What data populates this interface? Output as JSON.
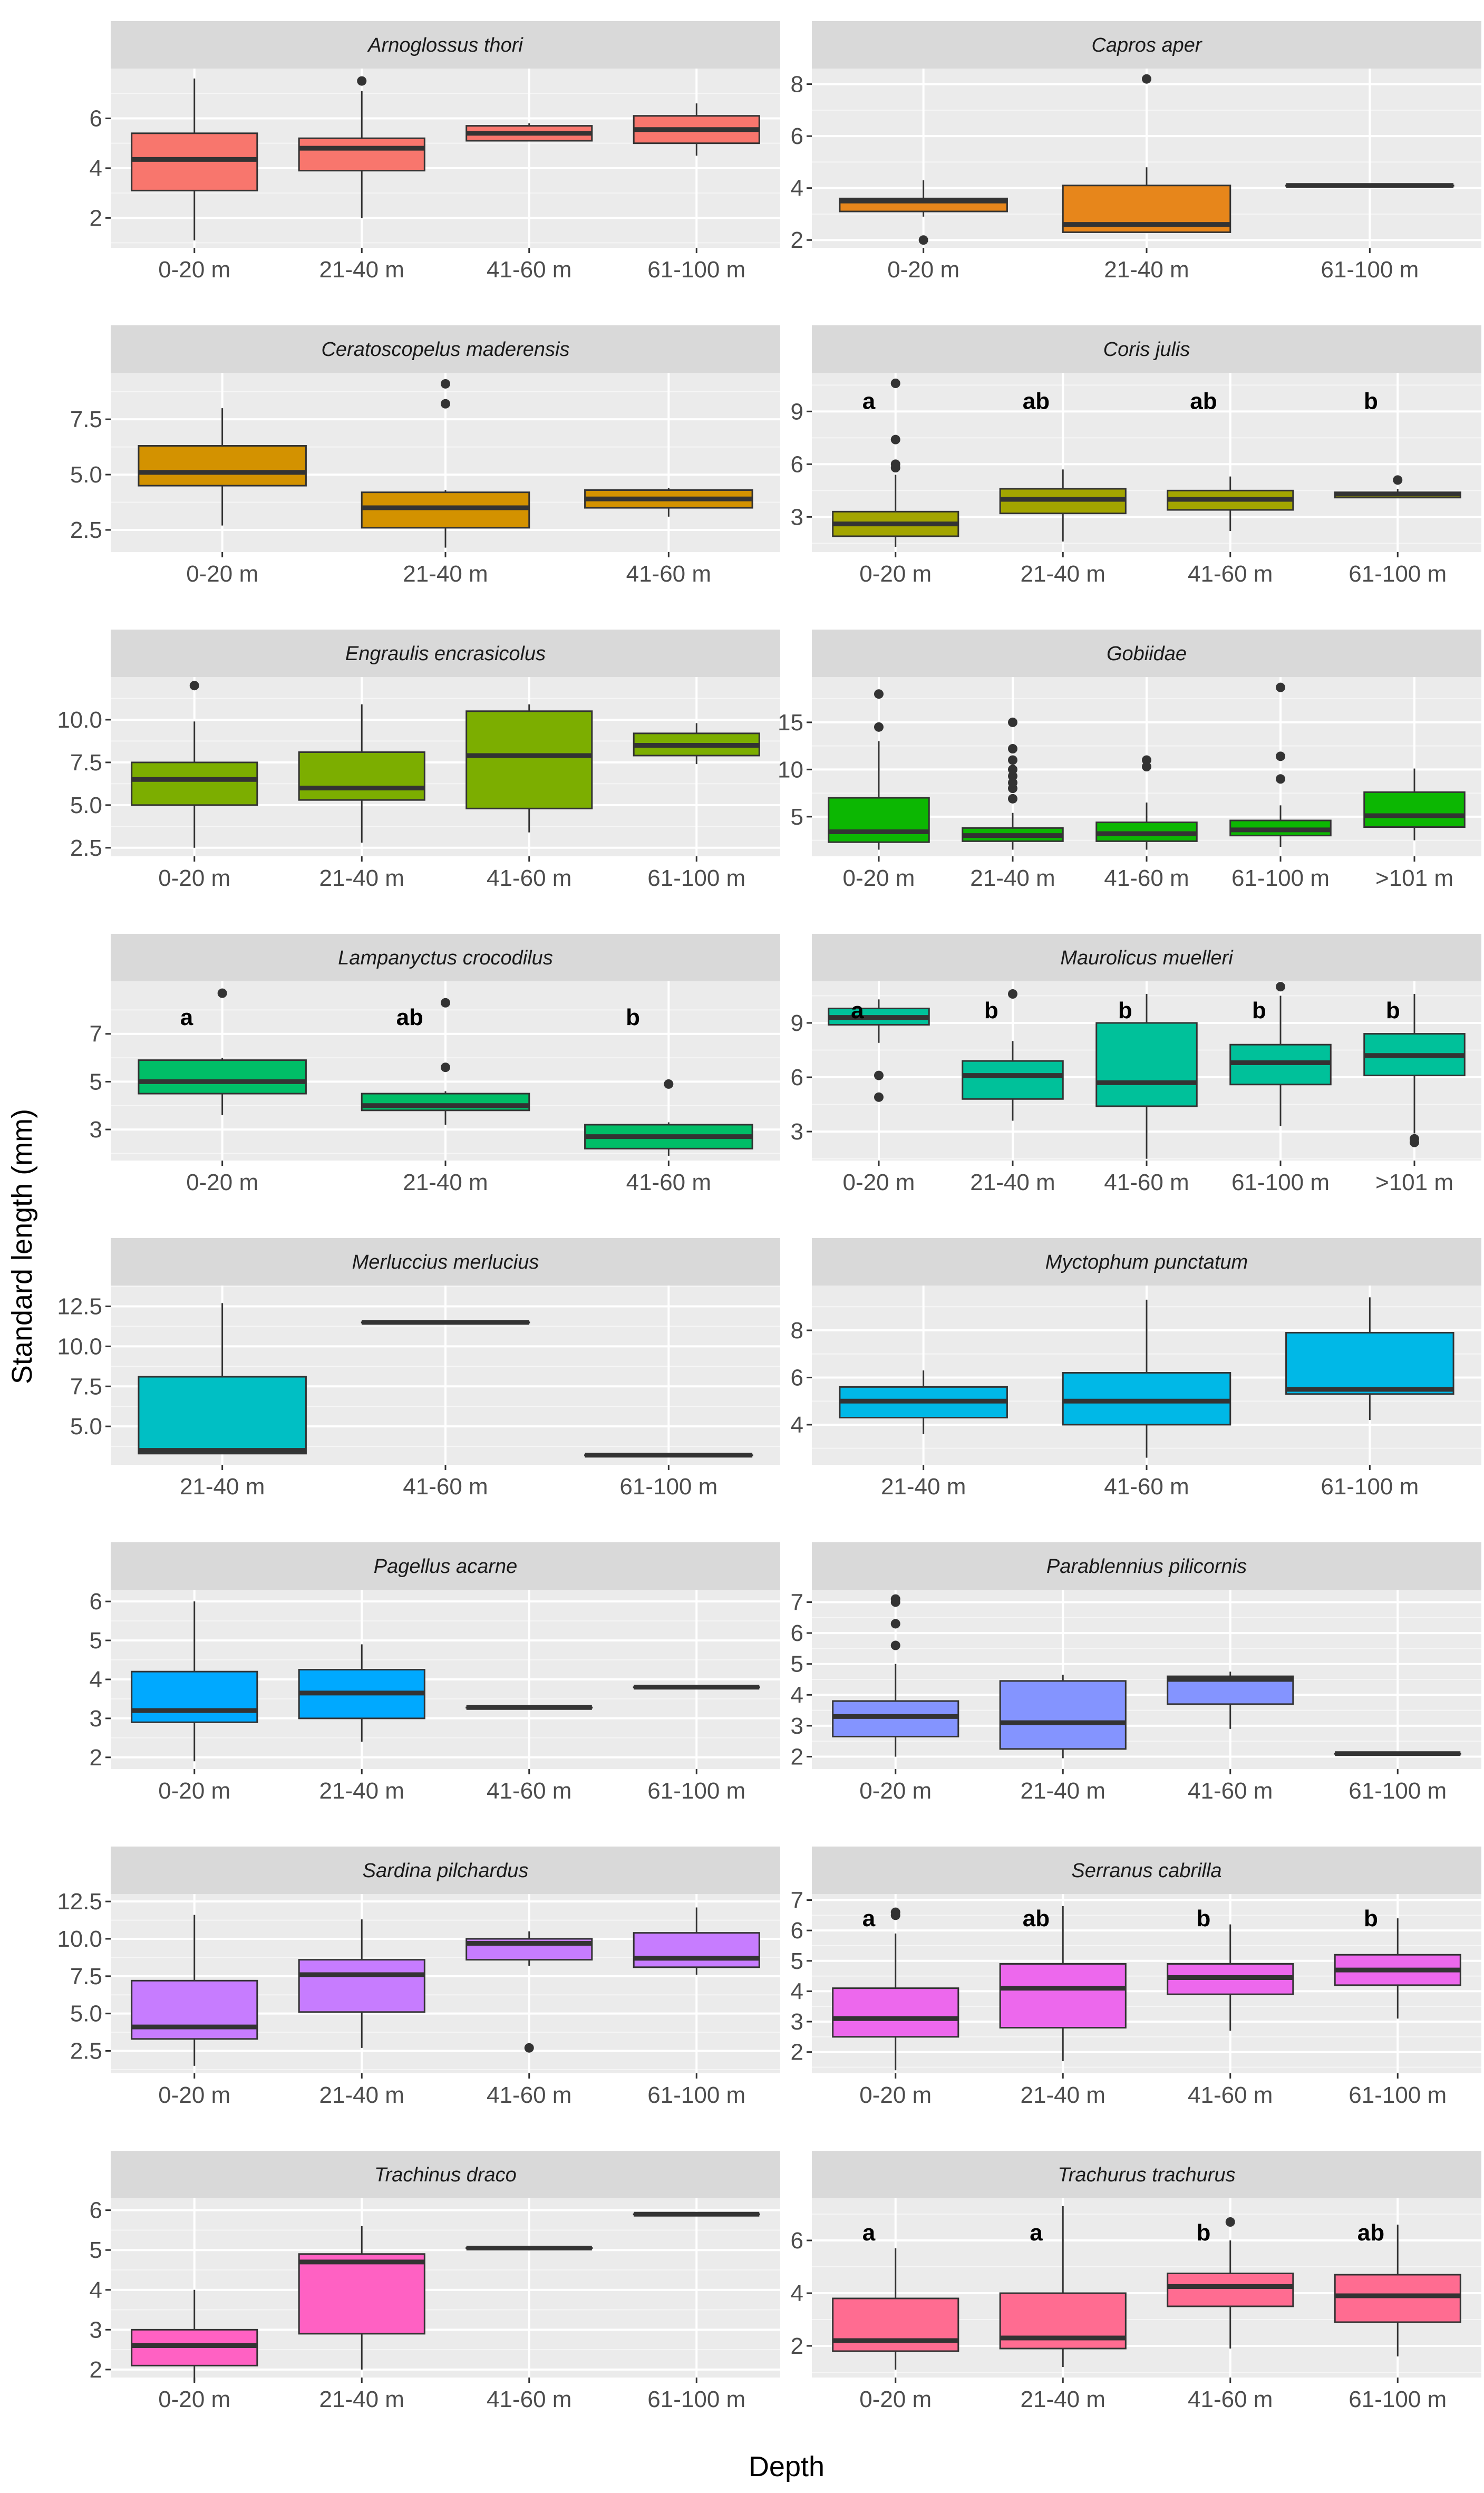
{
  "figure": {
    "ylabel": "Standard length (mm)",
    "xlabel": "Depth",
    "colors": {
      "panel_bg": "#ebebeb",
      "strip_bg": "#d9d9d9",
      "grid": "#ffffff",
      "box_line": "#333333"
    }
  },
  "chart_data": [
    {
      "type": "box",
      "title": "Arnoglossus thori",
      "color": "#f8766d",
      "ylim": [
        0.8,
        8.0
      ],
      "yticks": [
        2,
        4,
        6
      ],
      "categories": [
        "0-20 m",
        "21-40 m",
        "41-60 m",
        "61-100 m"
      ],
      "boxes": [
        {
          "category": "0-20 m",
          "low": 1.1,
          "q1": 3.1,
          "median": 4.35,
          "q3": 5.4,
          "high": 7.6,
          "outliers": []
        },
        {
          "category": "21-40 m",
          "low": 2.0,
          "q1": 3.9,
          "median": 4.8,
          "q3": 5.2,
          "high": 7.1,
          "outliers": [
            7.5
          ]
        },
        {
          "category": "41-60 m",
          "low": 5.1,
          "q1": 5.1,
          "median": 5.4,
          "q3": 5.7,
          "high": 5.8,
          "outliers": []
        },
        {
          "category": "61-100 m",
          "low": 4.5,
          "q1": 5.0,
          "median": 5.55,
          "q3": 6.1,
          "high": 6.6,
          "outliers": []
        }
      ]
    },
    {
      "type": "box",
      "title": "Capros aper",
      "color": "#e7861b",
      "ylim": [
        1.7,
        8.6
      ],
      "yticks": [
        2,
        4,
        6,
        8
      ],
      "categories": [
        "0-20 m",
        "21-40 m",
        "61-100 m"
      ],
      "boxes": [
        {
          "category": "0-20 m",
          "low": 2.9,
          "q1": 3.1,
          "median": 3.5,
          "q3": 3.6,
          "high": 4.3,
          "outliers": [
            2.0
          ]
        },
        {
          "category": "21-40 m",
          "low": 2.3,
          "q1": 2.3,
          "median": 2.6,
          "q3": 4.1,
          "high": 4.8,
          "outliers": [
            8.2
          ]
        },
        {
          "category": "61-100 m",
          "low": 4.1,
          "q1": 4.1,
          "median": 4.1,
          "q3": 4.1,
          "high": 4.1,
          "outliers": []
        }
      ]
    },
    {
      "type": "box",
      "title": "Ceratoscopelus maderensis",
      "color": "#d39200",
      "ylim": [
        1.5,
        9.6
      ],
      "yticks": [
        2.5,
        5.0,
        7.5
      ],
      "tick_format": "1",
      "categories": [
        "0-20 m",
        "21-40 m",
        "41-60 m"
      ],
      "boxes": [
        {
          "category": "0-20 m",
          "low": 2.7,
          "q1": 4.5,
          "median": 5.1,
          "q3": 6.3,
          "high": 8.0,
          "outliers": []
        },
        {
          "category": "21-40 m",
          "low": 1.7,
          "q1": 2.6,
          "median": 3.5,
          "q3": 4.2,
          "high": 4.3,
          "outliers": [
            8.2,
            9.1
          ]
        },
        {
          "category": "41-60 m",
          "low": 3.1,
          "q1": 3.5,
          "median": 3.9,
          "q3": 4.3,
          "high": 4.4,
          "outliers": []
        }
      ]
    },
    {
      "type": "box",
      "title": "Coris julis",
      "color": "#a3a500",
      "ylim": [
        1.0,
        11.2
      ],
      "yticks": [
        3,
        6,
        9
      ],
      "categories": [
        "0-20 m",
        "21-40 m",
        "41-60 m",
        "61-100 m"
      ],
      "letters": [
        "a",
        "ab",
        "ab",
        "b"
      ],
      "letter_y": 9.6,
      "boxes": [
        {
          "category": "0-20 m",
          "low": 1.3,
          "q1": 1.9,
          "median": 2.6,
          "q3": 3.3,
          "high": 5.4,
          "outliers": [
            5.8,
            6.0,
            7.4,
            10.6
          ]
        },
        {
          "category": "21-40 m",
          "low": 1.6,
          "q1": 3.2,
          "median": 4.0,
          "q3": 4.6,
          "high": 5.7,
          "outliers": []
        },
        {
          "category": "41-60 m",
          "low": 2.2,
          "q1": 3.4,
          "median": 4.0,
          "q3": 4.5,
          "high": 5.3,
          "outliers": []
        },
        {
          "category": "61-100 m",
          "low": 4.1,
          "q1": 4.1,
          "median": 4.3,
          "q3": 4.4,
          "high": 4.6,
          "outliers": [
            5.1
          ]
        }
      ]
    },
    {
      "type": "box",
      "title": "Engraulis encrasicolus",
      "color": "#7cae00",
      "ylim": [
        2.0,
        12.5
      ],
      "yticks": [
        2.5,
        5.0,
        7.5,
        10.0
      ],
      "tick_format": "1",
      "categories": [
        "0-20 m",
        "21-40 m",
        "41-60 m",
        "61-100 m"
      ],
      "boxes": [
        {
          "category": "0-20 m",
          "low": 2.5,
          "q1": 5.0,
          "median": 6.5,
          "q3": 7.5,
          "high": 9.9,
          "outliers": [
            12.0
          ]
        },
        {
          "category": "21-40 m",
          "low": 2.8,
          "q1": 5.3,
          "median": 6.0,
          "q3": 8.1,
          "high": 10.9,
          "outliers": []
        },
        {
          "category": "41-60 m",
          "low": 3.4,
          "q1": 4.8,
          "median": 7.9,
          "q3": 10.5,
          "high": 10.9,
          "outliers": []
        },
        {
          "category": "61-100 m",
          "low": 7.4,
          "q1": 7.9,
          "median": 8.5,
          "q3": 9.2,
          "high": 9.8,
          "outliers": []
        }
      ]
    },
    {
      "type": "box",
      "title": "Gobiidae",
      "color": "#0cb702",
      "ylim": [
        0.8,
        19.8
      ],
      "yticks": [
        5,
        10,
        15
      ],
      "categories": [
        "0-20 m",
        "21-40 m",
        "41-60 m",
        "61-100 m",
        ">101 m"
      ],
      "boxes": [
        {
          "category": "0-20 m",
          "low": 1.5,
          "q1": 2.3,
          "median": 3.4,
          "q3": 7.0,
          "high": 13.0,
          "outliers": [
            14.5,
            18.0
          ]
        },
        {
          "category": "21-40 m",
          "low": 1.5,
          "q1": 2.4,
          "median": 3.0,
          "q3": 3.8,
          "high": 5.4,
          "outliers": [
            6.9,
            8.0,
            8.6,
            9.3,
            10.0,
            11.0,
            12.2,
            15.0
          ]
        },
        {
          "category": "41-60 m",
          "low": 1.5,
          "q1": 2.4,
          "median": 3.2,
          "q3": 4.4,
          "high": 6.5,
          "outliers": [
            10.3,
            11.0
          ]
        },
        {
          "category": "61-100 m",
          "low": 1.8,
          "q1": 3.0,
          "median": 3.6,
          "q3": 4.6,
          "high": 6.2,
          "outliers": [
            9.0,
            11.4,
            18.7
          ]
        },
        {
          "category": ">101 m",
          "low": 2.5,
          "q1": 3.9,
          "median": 5.1,
          "q3": 7.6,
          "high": 10.1,
          "outliers": []
        }
      ]
    },
    {
      "type": "box",
      "title": "Lampanyctus crocodilus",
      "color": "#00be67",
      "ylim": [
        1.7,
        9.2
      ],
      "yticks": [
        3,
        5,
        7
      ],
      "categories": [
        "0-20 m",
        "21-40 m",
        "41-60 m"
      ],
      "letters": [
        "a",
        "ab",
        "b"
      ],
      "letter_y": 7.7,
      "boxes": [
        {
          "category": "0-20 m",
          "low": 3.6,
          "q1": 4.5,
          "median": 5.0,
          "q3": 5.9,
          "high": 6.0,
          "outliers": [
            8.7
          ]
        },
        {
          "category": "21-40 m",
          "low": 3.2,
          "q1": 3.8,
          "median": 4.0,
          "q3": 4.5,
          "high": 4.6,
          "outliers": [
            5.6,
            8.3
          ]
        },
        {
          "category": "41-60 m",
          "low": 1.9,
          "q1": 2.2,
          "median": 2.7,
          "q3": 3.2,
          "high": 3.3,
          "outliers": [
            4.9
          ]
        }
      ]
    },
    {
      "type": "box",
      "title": "Maurolicus muelleri",
      "color": "#00c19a",
      "ylim": [
        1.4,
        11.3
      ],
      "yticks": [
        3,
        6,
        9
      ],
      "categories": [
        "0-20 m",
        "21-40 m",
        "41-60 m",
        "61-100 m",
        ">101 m"
      ],
      "letters": [
        "a",
        "b",
        "b",
        "b",
        "b"
      ],
      "letter_y": 9.7,
      "boxes": [
        {
          "category": "0-20 m",
          "low": 7.9,
          "q1": 8.9,
          "median": 9.3,
          "q3": 9.8,
          "high": 10.3,
          "outliers": [
            4.9,
            6.1
          ]
        },
        {
          "category": "21-40 m",
          "low": 3.6,
          "q1": 4.8,
          "median": 6.1,
          "q3": 6.9,
          "high": 8.0,
          "outliers": [
            10.6
          ]
        },
        {
          "category": "41-60 m",
          "low": 1.5,
          "q1": 4.4,
          "median": 5.7,
          "q3": 9.0,
          "high": 10.6,
          "outliers": []
        },
        {
          "category": "61-100 m",
          "low": 3.3,
          "q1": 5.6,
          "median": 6.8,
          "q3": 7.8,
          "high": 10.5,
          "outliers": [
            11.0
          ]
        },
        {
          "category": ">101 m",
          "low": 2.9,
          "q1": 6.1,
          "median": 7.2,
          "q3": 8.4,
          "high": 10.6,
          "outliers": [
            2.4,
            2.6
          ]
        }
      ]
    },
    {
      "type": "box",
      "title": "Merluccius merlucius",
      "color": "#00bfc4",
      "ylim": [
        2.6,
        13.8
      ],
      "yticks": [
        5.0,
        7.5,
        10.0,
        12.5
      ],
      "tick_format": "1",
      "categories": [
        "21-40 m",
        "41-60 m",
        "61-100 m"
      ],
      "boxes": [
        {
          "category": "21-40 m",
          "low": 3.3,
          "q1": 3.3,
          "median": 3.5,
          "q3": 8.1,
          "high": 12.7,
          "outliers": []
        },
        {
          "category": "41-60 m",
          "low": 11.5,
          "q1": 11.5,
          "median": 11.5,
          "q3": 11.5,
          "high": 11.5,
          "outliers": []
        },
        {
          "category": "61-100 m",
          "low": 3.2,
          "q1": 3.2,
          "median": 3.2,
          "q3": 3.2,
          "high": 3.2,
          "outliers": []
        }
      ]
    },
    {
      "type": "box",
      "title": "Myctophum punctatum",
      "color": "#00b8e7",
      "ylim": [
        2.3,
        9.9
      ],
      "yticks": [
        4,
        6,
        8
      ],
      "categories": [
        "21-40 m",
        "41-60 m",
        "61-100 m"
      ],
      "boxes": [
        {
          "category": "21-40 m",
          "low": 3.6,
          "q1": 4.3,
          "median": 5.0,
          "q3": 5.6,
          "high": 6.3,
          "outliers": []
        },
        {
          "category": "41-60 m",
          "low": 2.6,
          "q1": 4.0,
          "median": 5.0,
          "q3": 6.2,
          "high": 9.3,
          "outliers": []
        },
        {
          "category": "61-100 m",
          "low": 4.2,
          "q1": 5.3,
          "median": 5.5,
          "q3": 7.9,
          "high": 9.4,
          "outliers": []
        }
      ]
    },
    {
      "type": "box",
      "title": "Pagellus acarne",
      "color": "#00a9ff",
      "ylim": [
        1.7,
        6.3
      ],
      "yticks": [
        2,
        3,
        4,
        5,
        6
      ],
      "categories": [
        "0-20 m",
        "21-40 m",
        "41-60 m",
        "61-100 m"
      ],
      "boxes": [
        {
          "category": "0-20 m",
          "low": 1.9,
          "q1": 2.9,
          "median": 3.2,
          "q3": 4.2,
          "high": 6.0,
          "outliers": []
        },
        {
          "category": "21-40 m",
          "low": 2.4,
          "q1": 3.0,
          "median": 3.65,
          "q3": 4.25,
          "high": 4.9,
          "outliers": []
        },
        {
          "category": "41-60 m",
          "low": 3.28,
          "q1": 3.28,
          "median": 3.28,
          "q3": 3.28,
          "high": 3.28,
          "outliers": []
        },
        {
          "category": "61-100 m",
          "low": 3.8,
          "q1": 3.8,
          "median": 3.8,
          "q3": 3.8,
          "high": 3.8,
          "outliers": []
        }
      ]
    },
    {
      "type": "box",
      "title": "Parablennius pilicornis",
      "color": "#8494ff",
      "ylim": [
        1.6,
        7.4
      ],
      "yticks": [
        2,
        3,
        4,
        5,
        6,
        7
      ],
      "categories": [
        "0-20 m",
        "21-40 m",
        "41-60 m",
        "61-100 m"
      ],
      "boxes": [
        {
          "category": "0-20 m",
          "low": 2.0,
          "q1": 2.65,
          "median": 3.3,
          "q3": 3.8,
          "high": 5.0,
          "outliers": [
            5.6,
            6.3,
            7.0,
            7.1
          ]
        },
        {
          "category": "21-40 m",
          "low": 1.95,
          "q1": 2.25,
          "median": 3.1,
          "q3": 4.45,
          "high": 4.65,
          "outliers": []
        },
        {
          "category": "41-60 m",
          "low": 2.9,
          "q1": 3.7,
          "median": 4.5,
          "q3": 4.6,
          "high": 4.75,
          "outliers": []
        },
        {
          "category": "61-100 m",
          "low": 2.1,
          "q1": 2.1,
          "median": 2.1,
          "q3": 2.1,
          "high": 2.1,
          "outliers": []
        }
      ]
    },
    {
      "type": "box",
      "title": "Sardina pilchardus",
      "color": "#c77cff",
      "ylim": [
        1.0,
        13.0
      ],
      "yticks": [
        2.5,
        5.0,
        7.5,
        10.0,
        12.5
      ],
      "tick_format": "1",
      "categories": [
        "0-20 m",
        "21-40 m",
        "41-60 m",
        "61-100 m"
      ],
      "boxes": [
        {
          "category": "0-20 m",
          "low": 1.5,
          "q1": 3.3,
          "median": 4.1,
          "q3": 7.2,
          "high": 11.6,
          "outliers": []
        },
        {
          "category": "21-40 m",
          "low": 2.7,
          "q1": 5.1,
          "median": 7.6,
          "q3": 8.6,
          "high": 11.3,
          "outliers": []
        },
        {
          "category": "41-60 m",
          "low": 8.2,
          "q1": 8.6,
          "median": 9.7,
          "q3": 10.0,
          "high": 10.5,
          "outliers": [
            2.7
          ]
        },
        {
          "category": "61-100 m",
          "low": 7.6,
          "q1": 8.1,
          "median": 8.7,
          "q3": 10.4,
          "high": 12.1,
          "outliers": []
        }
      ]
    },
    {
      "type": "box",
      "title": "Serranus cabrilla",
      "color": "#ed68ed",
      "ylim": [
        1.3,
        7.2
      ],
      "yticks": [
        2,
        3,
        4,
        5,
        6,
        7
      ],
      "categories": [
        "0-20 m",
        "21-40 m",
        "41-60 m",
        "61-100 m"
      ],
      "letters": [
        "a",
        "ab",
        "b",
        "b"
      ],
      "letter_y": 6.4,
      "boxes": [
        {
          "category": "0-20 m",
          "low": 1.4,
          "q1": 2.5,
          "median": 3.1,
          "q3": 4.1,
          "high": 5.9,
          "outliers": [
            6.5,
            6.6
          ]
        },
        {
          "category": "21-40 m",
          "low": 1.7,
          "q1": 2.8,
          "median": 4.1,
          "q3": 4.9,
          "high": 6.8,
          "outliers": []
        },
        {
          "category": "41-60 m",
          "low": 2.7,
          "q1": 3.9,
          "median": 4.45,
          "q3": 4.9,
          "high": 6.2,
          "outliers": []
        },
        {
          "category": "61-100 m",
          "low": 3.1,
          "q1": 4.2,
          "median": 4.7,
          "q3": 5.2,
          "high": 6.4,
          "outliers": []
        }
      ]
    },
    {
      "type": "box",
      "title": "Trachinus draco",
      "color": "#ff61c3",
      "ylim": [
        1.8,
        6.3
      ],
      "yticks": [
        2,
        3,
        4,
        5,
        6
      ],
      "categories": [
        "0-20 m",
        "21-40 m",
        "41-60 m",
        "61-100 m"
      ],
      "boxes": [
        {
          "category": "0-20 m",
          "low": 1.7,
          "q1": 2.1,
          "median": 2.6,
          "q3": 3.0,
          "high": 4.0,
          "outliers": []
        },
        {
          "category": "21-40 m",
          "low": 2.0,
          "q1": 2.9,
          "median": 4.7,
          "q3": 4.9,
          "high": 5.6,
          "outliers": []
        },
        {
          "category": "41-60 m",
          "low": 5.05,
          "q1": 5.05,
          "median": 5.05,
          "q3": 5.05,
          "high": 5.05,
          "outliers": []
        },
        {
          "category": "61-100 m",
          "low": 5.9,
          "q1": 5.9,
          "median": 5.9,
          "q3": 5.9,
          "high": 5.9,
          "outliers": []
        }
      ]
    },
    {
      "type": "box",
      "title": "Trachurus trachurus",
      "color": "#ff6c91",
      "ylim": [
        0.8,
        7.6
      ],
      "yticks": [
        2,
        4,
        6
      ],
      "categories": [
        "0-20 m",
        "21-40 m",
        "41-60 m",
        "61-100 m"
      ],
      "letters": [
        "a",
        "a",
        "b",
        "ab"
      ],
      "letter_y": 6.3,
      "boxes": [
        {
          "category": "0-20 m",
          "low": 1.1,
          "q1": 1.8,
          "median": 2.2,
          "q3": 3.8,
          "high": 5.7,
          "outliers": []
        },
        {
          "category": "21-40 m",
          "low": 1.2,
          "q1": 1.9,
          "median": 2.3,
          "q3": 4.0,
          "high": 7.3,
          "outliers": []
        },
        {
          "category": "41-60 m",
          "low": 1.9,
          "q1": 3.5,
          "median": 4.25,
          "q3": 4.75,
          "high": 6.0,
          "outliers": [
            6.7
          ]
        },
        {
          "category": "61-100 m",
          "low": 1.6,
          "q1": 2.9,
          "median": 3.9,
          "q3": 4.7,
          "high": 6.6,
          "outliers": []
        }
      ]
    }
  ]
}
